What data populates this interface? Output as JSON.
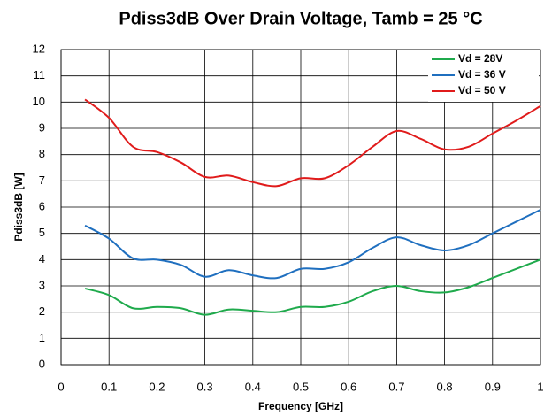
{
  "chart_data": {
    "type": "line",
    "title": "Pdiss3dB Over Drain Voltage, Tamb = 25 °C",
    "xlabel": "Frequency [GHz]",
    "ylabel": "Pdiss3dB [W]",
    "x": [
      0.05,
      0.1,
      0.15,
      0.2,
      0.25,
      0.3,
      0.35,
      0.4,
      0.45,
      0.5,
      0.55,
      0.6,
      0.65,
      0.7,
      0.75,
      0.8,
      0.85,
      0.9,
      0.95,
      1.0
    ],
    "series": [
      {
        "name": "Vd = 28V",
        "color": "#1faa4c",
        "values": [
          2.9,
          2.65,
          2.15,
          2.2,
          2.15,
          1.9,
          2.1,
          2.05,
          2.0,
          2.2,
          2.2,
          2.4,
          2.8,
          3.0,
          2.8,
          2.75,
          2.95,
          3.3,
          3.65,
          4.0
        ]
      },
      {
        "name": "Vd = 36 V",
        "color": "#1f6fbf",
        "values": [
          5.3,
          4.8,
          4.05,
          4.0,
          3.8,
          3.35,
          3.6,
          3.4,
          3.3,
          3.65,
          3.65,
          3.9,
          4.45,
          4.85,
          4.55,
          4.35,
          4.55,
          5.0,
          5.45,
          5.9
        ]
      },
      {
        "name": "Vd = 50 V",
        "color": "#e01b1b",
        "values": [
          10.1,
          9.4,
          8.3,
          8.1,
          7.7,
          7.15,
          7.2,
          6.95,
          6.8,
          7.1,
          7.1,
          7.6,
          8.3,
          8.9,
          8.6,
          8.2,
          8.3,
          8.8,
          9.3,
          9.85
        ]
      }
    ],
    "xlim": [
      0,
      1
    ],
    "xticks": [
      0,
      0.1,
      0.2,
      0.3,
      0.4,
      0.5,
      0.6,
      0.7,
      0.8,
      0.9,
      1
    ],
    "ylim": [
      0,
      12
    ],
    "yticks": [
      0,
      1,
      2,
      3,
      4,
      5,
      6,
      7,
      8,
      9,
      10,
      11,
      12
    ],
    "grid": true,
    "legend": "upper right"
  }
}
